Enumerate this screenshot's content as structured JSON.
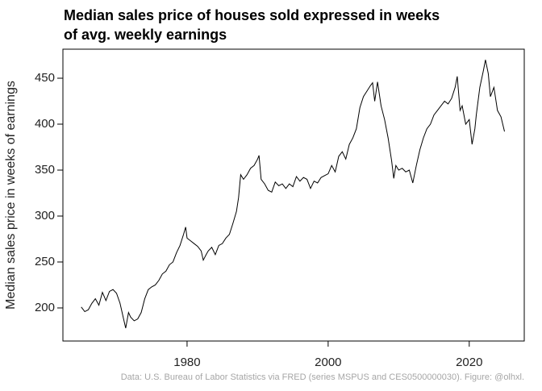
{
  "chart_data": {
    "type": "line",
    "title": [
      "Median sales price of houses sold expressed in weeks",
      "of avg. weekly earnings"
    ],
    "y_label": "Median sales price in weeks of earnings",
    "caption": "Data: U.S. Bureau of Labor Statistics via FRED (series MSPUS and CES0500000030). Figure: @olhxl.",
    "color": "#000000",
    "xlim": [
      1962.4,
      2027.8
    ],
    "xticks": [
      1980,
      2000,
      2020
    ],
    "ylim": [
      164,
      481.6
    ],
    "yticks": [
      200,
      250,
      300,
      350,
      400,
      450
    ],
    "x": [
      1965.0,
      1965.5,
      1966,
      1966.5,
      1967,
      1967.5,
      1968,
      1968.5,
      1969,
      1969.5,
      1970,
      1970.5,
      1971,
      1971.3,
      1971.7,
      1972,
      1972.5,
      1973,
      1973.5,
      1974,
      1974.5,
      1975,
      1975.5,
      1976,
      1976.5,
      1977,
      1977.5,
      1978,
      1978.5,
      1979,
      1979.5,
      1979.8,
      1980,
      1980.5,
      1981,
      1981.5,
      1982,
      1982.3,
      1982.7,
      1983,
      1983.5,
      1984,
      1984.5,
      1985,
      1985.5,
      1986,
      1986.5,
      1987,
      1987.3,
      1987.6,
      1988,
      1988.5,
      1989,
      1989.5,
      1990,
      1990.2,
      1990.5,
      1991,
      1991.5,
      1992,
      1992.5,
      1993,
      1993.5,
      1994,
      1994.5,
      1995,
      1995.5,
      1996,
      1996.5,
      1997,
      1997.5,
      1998,
      1998.5,
      1999,
      1999.5,
      2000,
      2000.5,
      2001,
      2001.5,
      2002,
      2002.5,
      2003,
      2003.5,
      2004,
      2004.5,
      2005,
      2005.5,
      2006,
      2006.3,
      2006.6,
      2007,
      2007.5,
      2008,
      2008.5,
      2009,
      2009.3,
      2009.6,
      2010,
      2010.5,
      2011,
      2011.5,
      2012,
      2012.5,
      2013,
      2013.5,
      2014,
      2014.5,
      2015,
      2015.5,
      2016,
      2016.5,
      2017,
      2017.5,
      2018,
      2018.3,
      2018.7,
      2019,
      2019.5,
      2020,
      2020.4,
      2020.8,
      2021,
      2021.5,
      2022,
      2022.3,
      2022.7,
      2023,
      2023.5,
      2024,
      2024.5,
      2025
    ],
    "values": [
      201,
      196,
      198,
      205,
      210,
      203,
      217,
      208,
      218,
      220,
      216,
      205,
      188,
      178,
      195,
      190,
      186,
      188,
      195,
      210,
      220,
      223,
      225,
      230,
      237,
      240,
      247,
      250,
      260,
      268,
      280,
      288,
      276,
      273,
      270,
      267,
      262,
      252,
      258,
      262,
      266,
      258,
      268,
      270,
      276,
      280,
      292,
      305,
      320,
      345,
      340,
      345,
      352,
      355,
      362,
      366,
      340,
      335,
      328,
      326,
      337,
      333,
      335,
      330,
      335,
      332,
      343,
      338,
      342,
      340,
      330,
      338,
      336,
      342,
      344,
      346,
      355,
      348,
      365,
      370,
      362,
      378,
      385,
      395,
      418,
      430,
      436,
      442,
      445,
      425,
      446,
      420,
      405,
      385,
      360,
      341,
      355,
      350,
      352,
      348,
      350,
      336,
      355,
      372,
      385,
      395,
      400,
      410,
      415,
      420,
      425,
      422,
      428,
      440,
      452,
      415,
      420,
      400,
      405,
      378,
      395,
      410,
      440,
      458,
      470,
      455,
      430,
      440,
      415,
      408,
      392
    ]
  }
}
